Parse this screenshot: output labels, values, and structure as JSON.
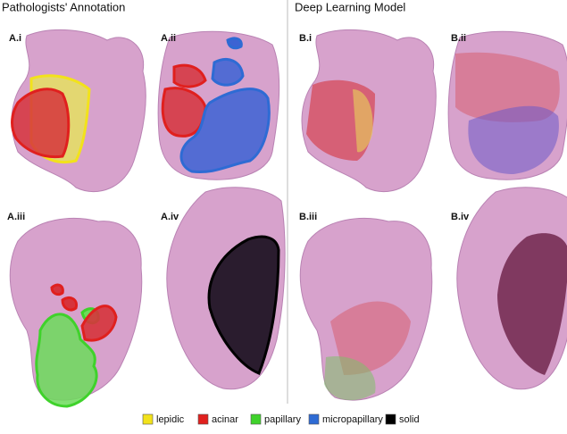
{
  "headings": {
    "left": "Pathologists' Annotation",
    "right": "Deep Learning Model"
  },
  "panels": [
    "A.i",
    "A.ii",
    "A.iii",
    "A.iv",
    "B.i",
    "B.ii",
    "B.iii",
    "B.iv"
  ],
  "legend": [
    {
      "label": "lepidic",
      "color": "#f2e21b"
    },
    {
      "label": "acinar",
      "color": "#e0201e"
    },
    {
      "label": "papillary",
      "color": "#3fd22b"
    },
    {
      "label": "micropapillary",
      "color": "#2e6bd4"
    },
    {
      "label": "solid",
      "color": "#000000"
    }
  ]
}
